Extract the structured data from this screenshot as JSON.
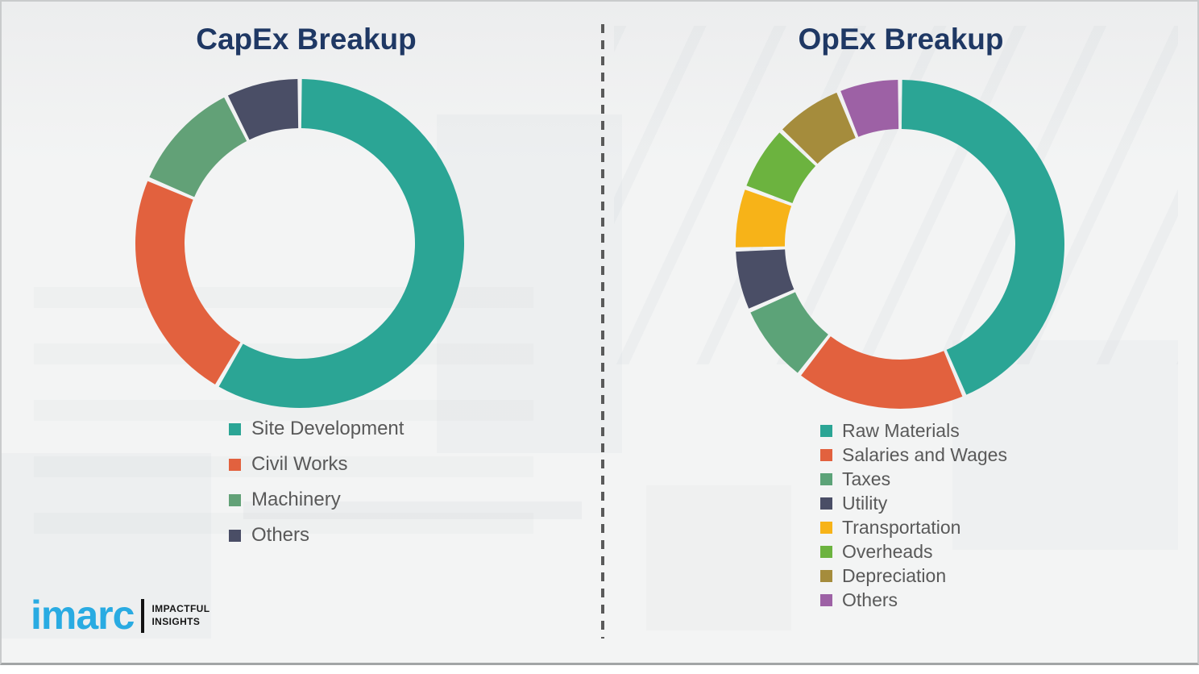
{
  "page": {
    "background_color": "#f3f4f4",
    "divider_style": "vertical-dashed",
    "divider_color": "#5a5a5a",
    "title_color": "#1f3864",
    "legend_text_color": "#595959"
  },
  "branding": {
    "logo_text": "imarc",
    "tagline_line1": "IMPACTFUL",
    "tagline_line2": "INSIGHTS",
    "logo_color": "#29abe2"
  },
  "chart_data": [
    {
      "type": "pie",
      "donut": true,
      "title": "CapEx Breakup",
      "legend_position": "below-left",
      "start_angle_deg": 0,
      "direction": "clockwise",
      "segments": [
        {
          "label": "Site Development",
          "value": 58.4,
          "color": "#2ba595"
        },
        {
          "label": "Civil Works",
          "value": 23.0,
          "color": "#e2613e"
        },
        {
          "label": "Machinery",
          "value": 11.2,
          "color": "#62a177"
        },
        {
          "label": "Others",
          "value": 7.4,
          "color": "#4a4e66"
        }
      ]
    },
    {
      "type": "pie",
      "donut": true,
      "title": "OpEx Breakup",
      "legend_position": "below-left",
      "start_angle_deg": 0,
      "direction": "clockwise",
      "segments": [
        {
          "label": "Raw Materials",
          "value": 43.6,
          "color": "#2ba595"
        },
        {
          "label": "Salaries and Wages",
          "value": 16.9,
          "color": "#e2613e"
        },
        {
          "label": "Taxes",
          "value": 7.9,
          "color": "#5ca378"
        },
        {
          "label": "Utility",
          "value": 6.1,
          "color": "#4a4e66"
        },
        {
          "label": "Transportation",
          "value": 6.1,
          "color": "#f7b318"
        },
        {
          "label": "Overheads",
          "value": 6.5,
          "color": "#6cb33f"
        },
        {
          "label": "Depreciation",
          "value": 6.8,
          "color": "#a58c3c"
        },
        {
          "label": "Others",
          "value": 6.1,
          "color": "#9d61a5"
        }
      ]
    }
  ]
}
